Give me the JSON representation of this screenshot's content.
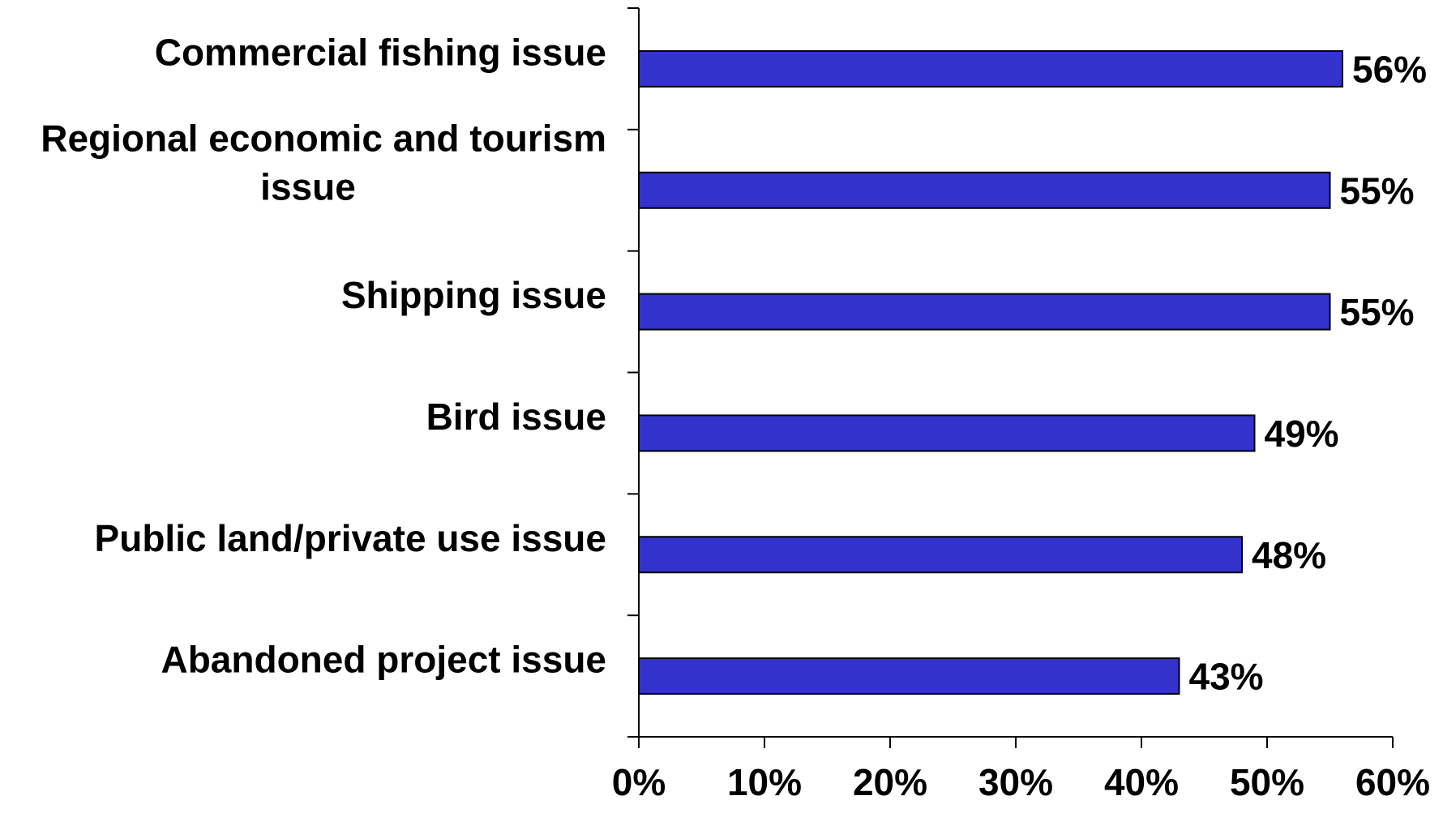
{
  "chart_data": {
    "type": "bar",
    "orientation": "horizontal",
    "title": "",
    "xlabel": "",
    "ylabel": "",
    "categories": [
      "Commercial fishing issue",
      "Regional economic and tourism issue",
      "Shipping issue",
      "Bird issue",
      "Public land/private use issue",
      "Abandoned project issue"
    ],
    "category_lines": [
      [
        "Commercial fishing issue"
      ],
      [
        "Regional economic and tourism",
        "issue"
      ],
      [
        "Shipping issue"
      ],
      [
        "Bird issue"
      ],
      [
        "Public land/private use issue"
      ],
      [
        "Abandoned project issue"
      ]
    ],
    "values": [
      56,
      55,
      55,
      49,
      48,
      43
    ],
    "value_labels": [
      "56%",
      "55%",
      "55%",
      "49%",
      "48%",
      "43%"
    ],
    "xlim": [
      0,
      60
    ],
    "x_ticks": [
      0,
      10,
      20,
      30,
      40,
      50,
      60
    ],
    "x_tick_labels": [
      "0%",
      "10%",
      "20%",
      "30%",
      "40%",
      "50%",
      "60%"
    ],
    "grid": false,
    "legend": "none",
    "bar_color": "#3333cc",
    "bar_edge_color": "#000000"
  }
}
